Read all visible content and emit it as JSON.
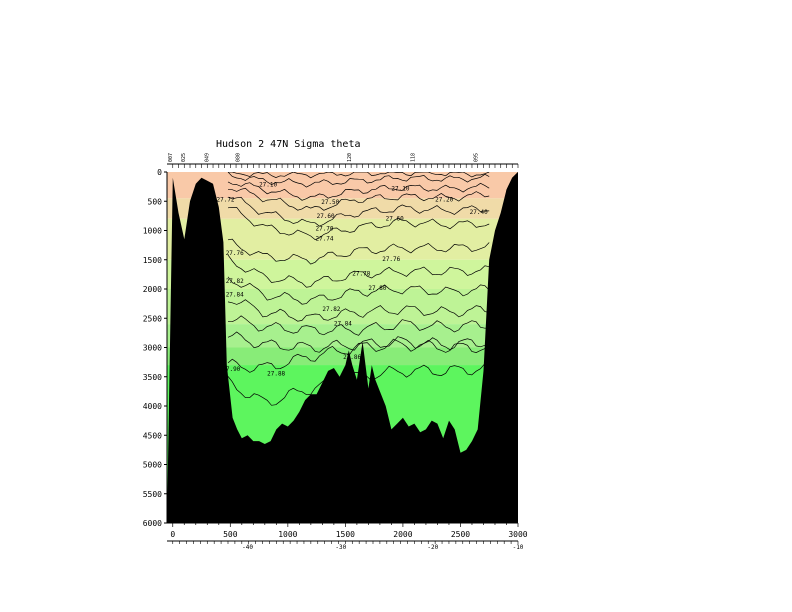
{
  "chart_data": {
    "type": "heatmap",
    "title": "Hudson 2 47N Sigma theta",
    "xlabel": "",
    "ylabel": "",
    "x_range": [
      -50,
      3000
    ],
    "y_range": [
      0,
      6000
    ],
    "y_inverted": true,
    "x_ticks": [
      0,
      500,
      1000,
      1500,
      2000,
      2500,
      3000
    ],
    "y_ticks": [
      0,
      500,
      1000,
      1500,
      2000,
      2500,
      3000,
      3500,
      4000,
      4500,
      5000,
      5500,
      6000
    ],
    "lon_ticks": [
      "-40",
      "-30",
      "-20",
      "-10"
    ],
    "lon_tick_distances": [
      650,
      1460,
      2260,
      3000
    ],
    "station_labels": [
      "007",
      "025",
      "049",
      "080",
      "120",
      "118",
      "095"
    ],
    "station_distances": [
      -5,
      105,
      310,
      580,
      1550,
      2100,
      2650
    ],
    "colors": {
      "background": "#ffffff",
      "bathymetry": "#000000",
      "contour": "#000000",
      "bands": [
        "#f9c9a8",
        "#f0dba8",
        "#e2eea2",
        "#cff59c",
        "#bef396",
        "#a7f08e",
        "#88ec78",
        "#5df55e"
      ]
    },
    "color_band_bottoms_m": [
      450,
      800,
      1500,
      2000,
      2600,
      3000,
      3300
    ],
    "bottom_depth": {
      "x": [
        -50,
        0,
        50,
        100,
        150,
        200,
        250,
        300,
        350,
        400,
        440,
        470,
        520,
        560,
        600,
        650,
        700,
        750,
        800,
        850,
        900,
        950,
        1000,
        1050,
        1100,
        1150,
        1200,
        1250,
        1300,
        1350,
        1400,
        1450,
        1500,
        1530,
        1560,
        1600,
        1650,
        1700,
        1730,
        1760,
        1800,
        1850,
        1900,
        1950,
        2000,
        2050,
        2100,
        2150,
        2200,
        2250,
        2300,
        2350,
        2400,
        2450,
        2500,
        2550,
        2600,
        2650,
        2700,
        2750,
        2800,
        2850,
        2900,
        2950,
        3000
      ],
      "y": [
        6000,
        100,
        700,
        1150,
        500,
        200,
        100,
        150,
        200,
        600,
        1200,
        3300,
        4200,
        4400,
        4550,
        4500,
        4600,
        4600,
        4650,
        4600,
        4400,
        4300,
        4350,
        4250,
        4100,
        3900,
        3800,
        3800,
        3600,
        3400,
        3350,
        3500,
        3300,
        3050,
        3300,
        3550,
        2900,
        3700,
        3300,
        3550,
        3750,
        4000,
        4400,
        4300,
        4200,
        4350,
        4300,
        4450,
        4400,
        4250,
        4300,
        4550,
        4250,
        4400,
        4800,
        4750,
        4600,
        4400,
        3400,
        1500,
        1000,
        700,
        300,
        100,
        0
      ]
    },
    "right_wall_edge": {
      "x": [
        2990,
        2750,
        2780,
        2810,
        2840,
        2870,
        2900,
        2950,
        3000
      ],
      "y": [
        0,
        4400,
        3400,
        1500,
        1000,
        700,
        300,
        100,
        0
      ]
    },
    "contours": [
      {
        "level": 27.1,
        "label": "27.10",
        "y": [
          0,
          50,
          40,
          20,
          10,
          20,
          40
        ]
      },
      {
        "level": 27.2,
        "label": "27.20",
        "y": [
          50,
          150,
          200,
          150,
          100,
          120,
          100
        ]
      },
      {
        "level": 27.4,
        "label": "27.40",
        "y": [
          150,
          300,
          450,
          320,
          260,
          290,
          250
        ]
      },
      {
        "level": 27.6,
        "label": "27.60",
        "y": [
          250,
          450,
          650,
          470,
          420,
          440,
          380
        ]
      },
      {
        "level": 27.7,
        "label": "27.70",
        "y": [
          400,
          700,
          900,
          700,
          620,
          660,
          620
        ]
      },
      {
        "level": 27.74,
        "label": "27.74",
        "y": [
          600,
          950,
          1100,
          950,
          850,
          900,
          880
        ]
      },
      {
        "level": 27.76,
        "label": "27.76",
        "y": [
          1200,
          1450,
          1500,
          1350,
          1300,
          1300,
          1280
        ]
      },
      {
        "level": 27.78,
        "label": "27.78",
        "y": [
          1500,
          1800,
          1900,
          1750,
          1700,
          1700,
          1680
        ]
      },
      {
        "level": 27.8,
        "label": "27.80",
        "y": [
          1800,
          2100,
          2200,
          2050,
          2000,
          2050,
          2000
        ]
      },
      {
        "level": 27.82,
        "label": "27.82",
        "y": [
          2150,
          2400,
          2500,
          2400,
          2350,
          2400,
          2350
        ]
      },
      {
        "level": 27.84,
        "label": "27.84",
        "y": [
          2500,
          2650,
          2700,
          2700,
          2600,
          2650,
          2600
        ]
      },
      {
        "level": 27.86,
        "label": "",
        "y": [
          2800,
          2950,
          3000,
          2950,
          2900,
          2950,
          2900
        ]
      },
      {
        "level": 27.88,
        "label": "27.88",
        "y": [
          3300,
          3350,
          3150,
          3000,
          2950,
          3000,
          3000
        ]
      },
      {
        "level": 27.9,
        "label": "",
        "y": [
          3600,
          3950,
          3700,
          3500,
          3400,
          3400,
          3350
        ]
      }
    ],
    "contour_x": [
      480,
      800,
      1200,
      1600,
      2000,
      2400,
      2750
    ],
    "contour_labels_shown": [
      {
        "text": "27.10",
        "x": 750,
        "y": 250
      },
      {
        "text": "27.10",
        "x": 1900,
        "y": 320
      },
      {
        "text": "27.20",
        "x": 2280,
        "y": 500
      },
      {
        "text": "27.40",
        "x": 2580,
        "y": 720
      },
      {
        "text": "27.50",
        "x": 1290,
        "y": 550
      },
      {
        "text": "27.60",
        "x": 1250,
        "y": 790
      },
      {
        "text": "27.60",
        "x": 1850,
        "y": 830
      },
      {
        "text": "27.70",
        "x": 1240,
        "y": 1000
      },
      {
        "text": "27.74",
        "x": 1240,
        "y": 1170
      },
      {
        "text": "27.76",
        "x": 460,
        "y": 1420
      },
      {
        "text": "27.76",
        "x": 1820,
        "y": 1520
      },
      {
        "text": "27.78",
        "x": 1560,
        "y": 1770
      },
      {
        "text": "27.80",
        "x": 1700,
        "y": 2020
      },
      {
        "text": "27.82",
        "x": 460,
        "y": 1900
      },
      {
        "text": "27.84",
        "x": 460,
        "y": 2130
      },
      {
        "text": "27.82",
        "x": 1300,
        "y": 2380
      },
      {
        "text": "27.84",
        "x": 1400,
        "y": 2620
      },
      {
        "text": "27.86",
        "x": 1480,
        "y": 3200
      },
      {
        "text": "27.88",
        "x": 820,
        "y": 3480
      },
      {
        "text": "27.90",
        "x": 430,
        "y": 3400
      },
      {
        "text": "27.72",
        "x": 380,
        "y": 500
      },
      {
        "text": "27.90",
        "x": 2740,
        "y": 2200
      }
    ]
  }
}
